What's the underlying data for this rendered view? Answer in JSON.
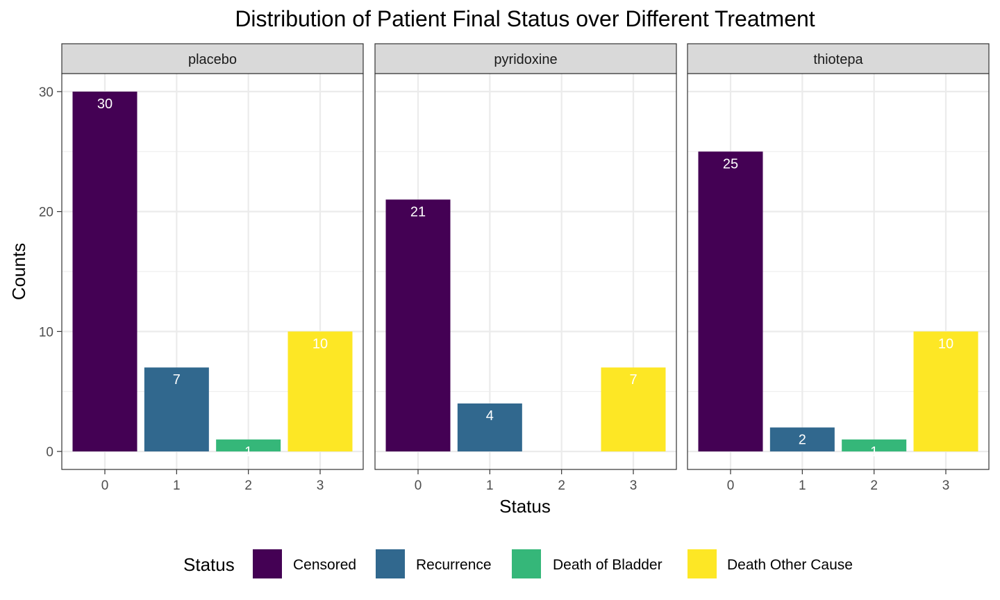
{
  "chart_data": {
    "type": "bar",
    "title": "Distribution of Patient Final Status over Different Treatment",
    "xlabel": "Status",
    "ylabel": "Counts",
    "categories": [
      "0",
      "1",
      "2",
      "3"
    ],
    "yticks": [
      0,
      10,
      20,
      30
    ],
    "ylim": [
      -1.5,
      31.5
    ],
    "grid": true,
    "legend_position": "bottom",
    "facets": [
      {
        "name": "placebo",
        "values": [
          30,
          7,
          1,
          10
        ]
      },
      {
        "name": "pyridoxine",
        "values": [
          21,
          4,
          0,
          7
        ]
      },
      {
        "name": "thiotepa",
        "values": [
          25,
          2,
          1,
          10
        ]
      }
    ],
    "legend": {
      "title": "Status",
      "items": [
        {
          "label": "Censored",
          "color": "#440154"
        },
        {
          "label": "Recurrence",
          "color": "#31688E"
        },
        {
          "label": "Death of Bladder",
          "color": "#35B779"
        },
        {
          "label": "Death Other Cause",
          "color": "#FDE725"
        }
      ]
    }
  }
}
